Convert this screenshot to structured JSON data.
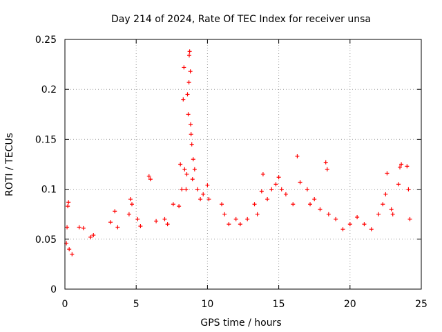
{
  "chart_data": {
    "type": "scatter",
    "title": "Day 214 of 2024, Rate Of TEC Index for receiver unsa",
    "xlabel": "GPS time / hours",
    "ylabel": "ROTI / TECUs",
    "xlim": [
      0,
      25
    ],
    "ylim": [
      0,
      0.25
    ],
    "xticks": [
      0,
      5,
      10,
      15,
      20,
      25
    ],
    "xtick_labels": [
      "0",
      "5",
      "10",
      "15",
      "20",
      "25"
    ],
    "yticks": [
      0,
      0.05,
      0.1,
      0.15,
      0.2,
      0.25
    ],
    "ytick_labels": [
      "0",
      "0.05",
      "0.1",
      "0.15",
      "0.2",
      "0.25"
    ],
    "grid": true,
    "marker": "+",
    "series": [
      {
        "name": "ROTI",
        "color": "#ff0000",
        "points": [
          [
            0.1,
            0.046
          ],
          [
            0.15,
            0.062
          ],
          [
            0.2,
            0.083
          ],
          [
            0.25,
            0.087
          ],
          [
            0.3,
            0.04
          ],
          [
            0.5,
            0.035
          ],
          [
            1.0,
            0.062
          ],
          [
            1.3,
            0.061
          ],
          [
            1.8,
            0.052
          ],
          [
            2.0,
            0.054
          ],
          [
            3.2,
            0.067
          ],
          [
            3.5,
            0.078
          ],
          [
            3.7,
            0.062
          ],
          [
            4.5,
            0.075
          ],
          [
            4.6,
            0.09
          ],
          [
            4.7,
            0.085
          ],
          [
            5.1,
            0.07
          ],
          [
            5.3,
            0.063
          ],
          [
            5.9,
            0.113
          ],
          [
            6.0,
            0.11
          ],
          [
            6.4,
            0.068
          ],
          [
            7.0,
            0.07
          ],
          [
            7.2,
            0.065
          ],
          [
            7.6,
            0.085
          ],
          [
            8.0,
            0.083
          ],
          [
            8.1,
            0.125
          ],
          [
            8.2,
            0.1
          ],
          [
            8.3,
            0.19
          ],
          [
            8.35,
            0.222
          ],
          [
            8.4,
            0.12
          ],
          [
            8.5,
            0.1
          ],
          [
            8.55,
            0.115
          ],
          [
            8.6,
            0.195
          ],
          [
            8.65,
            0.175
          ],
          [
            8.7,
            0.207
          ],
          [
            8.72,
            0.234
          ],
          [
            8.75,
            0.238
          ],
          [
            8.8,
            0.218
          ],
          [
            8.82,
            0.165
          ],
          [
            8.85,
            0.155
          ],
          [
            8.9,
            0.145
          ],
          [
            8.95,
            0.11
          ],
          [
            9.0,
            0.13
          ],
          [
            9.1,
            0.12
          ],
          [
            9.3,
            0.1
          ],
          [
            9.5,
            0.09
          ],
          [
            9.7,
            0.095
          ],
          [
            10.0,
            0.104
          ],
          [
            10.1,
            0.09
          ],
          [
            11.0,
            0.085
          ],
          [
            11.2,
            0.075
          ],
          [
            11.5,
            0.065
          ],
          [
            12.0,
            0.07
          ],
          [
            12.3,
            0.065
          ],
          [
            12.8,
            0.07
          ],
          [
            13.3,
            0.085
          ],
          [
            13.5,
            0.075
          ],
          [
            13.8,
            0.098
          ],
          [
            13.9,
            0.115
          ],
          [
            14.2,
            0.09
          ],
          [
            14.5,
            0.1
          ],
          [
            14.8,
            0.105
          ],
          [
            15.0,
            0.112
          ],
          [
            15.2,
            0.1
          ],
          [
            15.5,
            0.095
          ],
          [
            16.0,
            0.085
          ],
          [
            16.3,
            0.133
          ],
          [
            16.5,
            0.107
          ],
          [
            17.0,
            0.1
          ],
          [
            17.2,
            0.085
          ],
          [
            17.5,
            0.09
          ],
          [
            17.9,
            0.08
          ],
          [
            18.3,
            0.127
          ],
          [
            18.4,
            0.12
          ],
          [
            18.5,
            0.075
          ],
          [
            19.0,
            0.07
          ],
          [
            19.5,
            0.06
          ],
          [
            20.0,
            0.065
          ],
          [
            20.5,
            0.072
          ],
          [
            21.0,
            0.065
          ],
          [
            21.5,
            0.06
          ],
          [
            22.0,
            0.075
          ],
          [
            22.3,
            0.085
          ],
          [
            22.5,
            0.095
          ],
          [
            22.6,
            0.116
          ],
          [
            22.9,
            0.08
          ],
          [
            23.0,
            0.075
          ],
          [
            23.4,
            0.105
          ],
          [
            23.5,
            0.122
          ],
          [
            23.6,
            0.125
          ],
          [
            24.0,
            0.123
          ],
          [
            24.1,
            0.1
          ],
          [
            24.2,
            0.07
          ]
        ]
      }
    ]
  }
}
